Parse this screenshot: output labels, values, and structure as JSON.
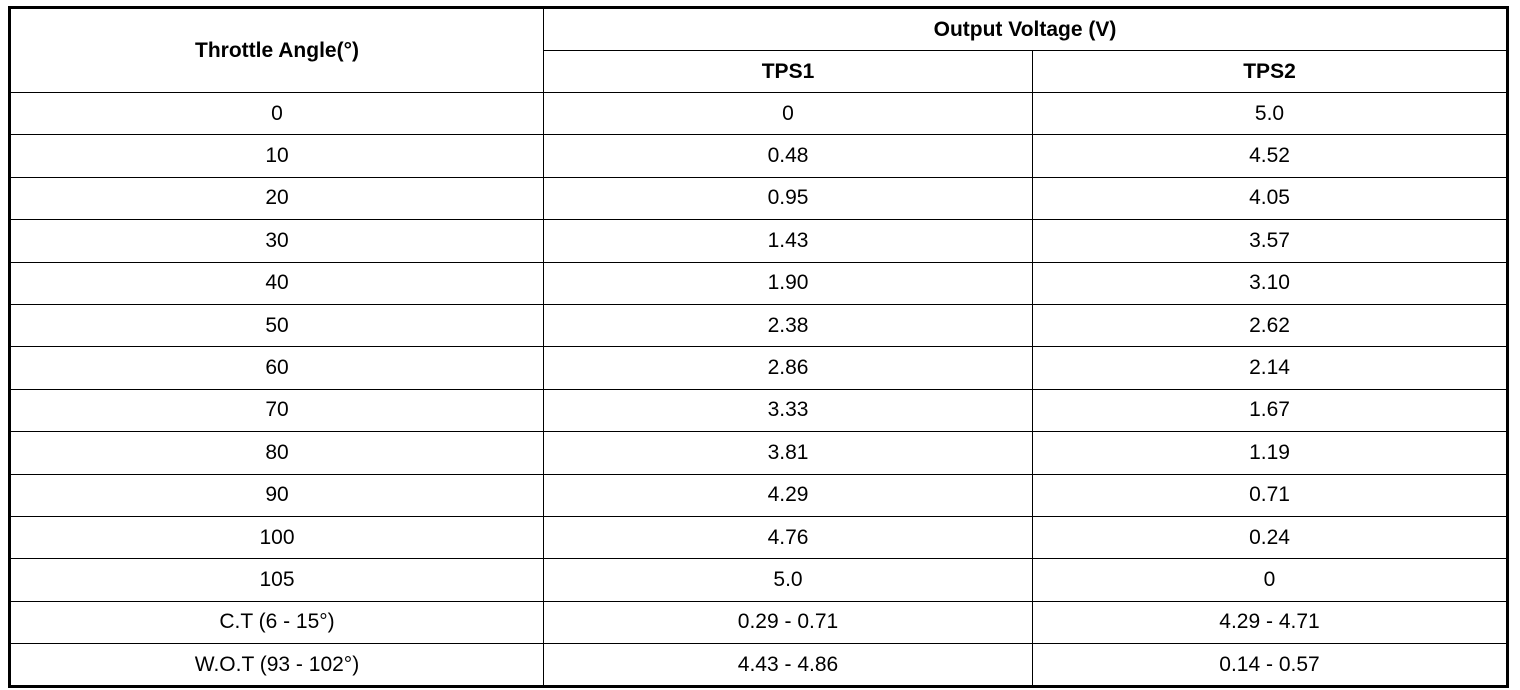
{
  "table": {
    "header": {
      "angle": "Throttle Angle(°)",
      "output": "Output Voltage (V)",
      "tps1": "TPS1",
      "tps2": "TPS2"
    },
    "rows": [
      [
        "0",
        "0",
        "5.0"
      ],
      [
        "10",
        "0.48",
        "4.52"
      ],
      [
        "20",
        "0.95",
        "4.05"
      ],
      [
        "30",
        "1.43",
        "3.57"
      ],
      [
        "40",
        "1.90",
        "3.10"
      ],
      [
        "50",
        "2.38",
        "2.62"
      ],
      [
        "60",
        "2.86",
        "2.14"
      ],
      [
        "70",
        "3.33",
        "1.67"
      ],
      [
        "80",
        "3.81",
        "1.19"
      ],
      [
        "90",
        "4.29",
        "0.71"
      ],
      [
        "100",
        "4.76",
        "0.24"
      ],
      [
        "105",
        "5.0",
        "0"
      ],
      [
        "C.T (6 - 15°)",
        "0.29 - 0.71",
        "4.29 - 4.71"
      ],
      [
        "W.O.T (93 - 102°)",
        "4.43 - 4.86",
        "0.14 - 0.57"
      ]
    ]
  }
}
